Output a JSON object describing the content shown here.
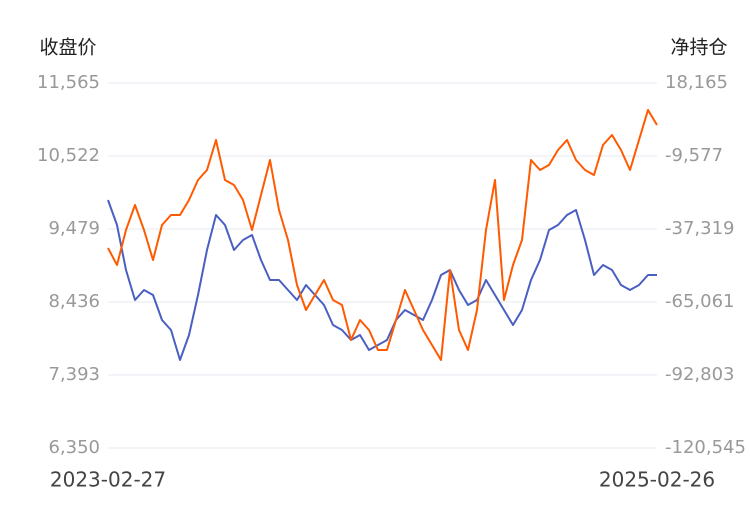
{
  "chart_data": {
    "type": "line",
    "y_label": "收盘价",
    "y2_label": "净持仓",
    "categories": [
      "2023-02-27",
      null,
      null,
      null,
      null,
      null,
      null,
      null,
      null,
      null,
      null,
      null,
      null,
      null,
      null,
      null,
      null,
      null,
      null,
      null,
      null,
      null,
      null,
      null,
      null,
      null,
      null,
      null,
      null,
      null,
      null,
      null,
      null,
      null,
      null,
      null,
      null,
      null,
      null,
      null,
      null,
      null,
      null,
      null,
      null,
      null,
      null,
      null,
      null,
      null,
      null,
      null,
      null,
      null,
      null,
      null,
      null,
      null,
      null,
      null,
      null,
      "2025-02-26"
    ],
    "ylim": [
      6350,
      11565
    ],
    "yticks": [
      {
        "value": 6350,
        "label": "6,350"
      },
      {
        "value": 7393,
        "label": "7,393"
      },
      {
        "value": 8436,
        "label": "8,436"
      },
      {
        "value": 9479,
        "label": "9,479"
      },
      {
        "value": 10522,
        "label": "10,522"
      },
      {
        "value": 11565,
        "label": "11,565"
      }
    ],
    "y2lim": [
      -120545,
      18165
    ],
    "y2ticks": [
      {
        "value": -120545,
        "label": "-120,545"
      },
      {
        "value": -92803,
        "label": "-92,803"
      },
      {
        "value": -65061,
        "label": "-65,061"
      },
      {
        "value": -37319,
        "label": "-37,319"
      },
      {
        "value": -9577,
        "label": "-9,577"
      },
      {
        "value": 18165,
        "label": "18,165"
      }
    ],
    "grid": true,
    "series": [
      {
        "color": "#4a5fc1",
        "axis": "y",
        "values": [
          9893,
          9536,
          8893,
          8465,
          8607,
          8536,
          8179,
          8036,
          7607,
          7964,
          8536,
          9179,
          9679,
          9536,
          9179,
          9322,
          9393,
          9036,
          8750,
          8750,
          8607,
          8465,
          8679,
          8536,
          8393,
          8107,
          8036,
          7893,
          7964,
          7750,
          7822,
          7893,
          8179,
          8322,
          8250,
          8179,
          8465,
          8822,
          8893,
          8607,
          8393,
          8465,
          8750,
          8536,
          8322,
          8107,
          8322,
          8750,
          9036,
          9465,
          9536,
          9679,
          9750,
          9322,
          8822,
          8965,
          8893,
          8679,
          8607,
          8679,
          8822,
          8822
        ]
      },
      {
        "color": "#ff5a00",
        "axis": "y2",
        "values": [
          -44540,
          -51000,
          -37699,
          -28199,
          -37699,
          -49100,
          -35799,
          -31999,
          -31999,
          -26299,
          -18698,
          -14898,
          -3497,
          -18698,
          -20598,
          -26299,
          -37699,
          -24398,
          -11097,
          -30099,
          -41500,
          -58601,
          -68102,
          -62401,
          -56701,
          -64302,
          -66202,
          -79503,
          -71902,
          -75702,
          -83303,
          -83303,
          -71902,
          -60501,
          -68102,
          -75702,
          -81403,
          -87103,
          -52901,
          -75702,
          -83303,
          -68102,
          -37699,
          -18698,
          -64302,
          -51000,
          -41500,
          -11097,
          -14898,
          -12997,
          -7297,
          -3497,
          -11097,
          -14898,
          -16798,
          -5397,
          -1597,
          -7297,
          -14898,
          -3497,
          7904,
          2204
        ]
      }
    ]
  }
}
